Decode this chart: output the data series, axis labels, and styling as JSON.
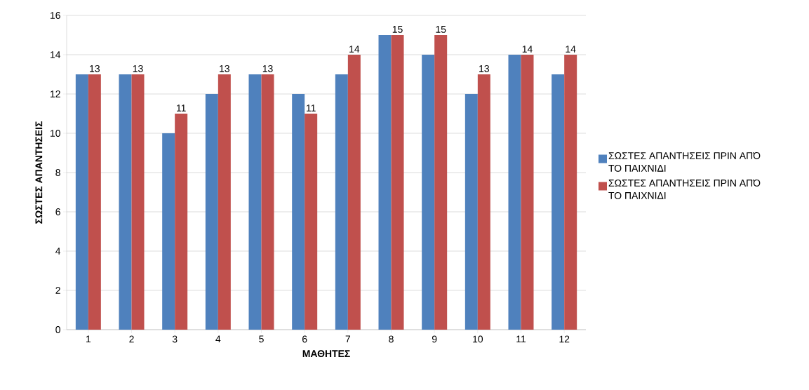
{
  "chart_data": {
    "type": "bar",
    "xlabel": "ΜΑΘΗΤΕΣ",
    "ylabel": "ΣΩΣΤΕΣ ΑΠΑΝΤΗΣΕΙΣ",
    "categories": [
      "1",
      "2",
      "3",
      "4",
      "5",
      "6",
      "7",
      "8",
      "9",
      "10",
      "11",
      "12"
    ],
    "series": [
      {
        "name": "ΣΩΣΤΕΣ ΑΠΑΝΤΗΣΕΙΣ ΠΡΙΝ ΑΠΌ ΤΟ ΠΑΙΧΝΙΔΙ",
        "color": "#4f81bd",
        "values": [
          13,
          13,
          10,
          12,
          13,
          12,
          13,
          15,
          14,
          12,
          14,
          13
        ]
      },
      {
        "name": "ΣΩΣΤΕΣ ΑΠΑΝΤΗΣΕΙΣ ΠΡΙΝ ΑΠΌ ΤΟ ΠΑΙΧΝΙΔΙ",
        "color": "#c0504d",
        "values": [
          13,
          13,
          11,
          13,
          13,
          11,
          14,
          15,
          15,
          13,
          14,
          14
        ],
        "value_labels": [
          "13",
          "13",
          "11",
          "13",
          "13",
          "11",
          "14",
          "15",
          "15",
          "13",
          "14",
          "14"
        ]
      }
    ],
    "ylim": [
      0,
      16
    ],
    "yticks": [
      0,
      2,
      4,
      6,
      8,
      10,
      12,
      14,
      16
    ],
    "grid": "y",
    "legend": "right"
  }
}
